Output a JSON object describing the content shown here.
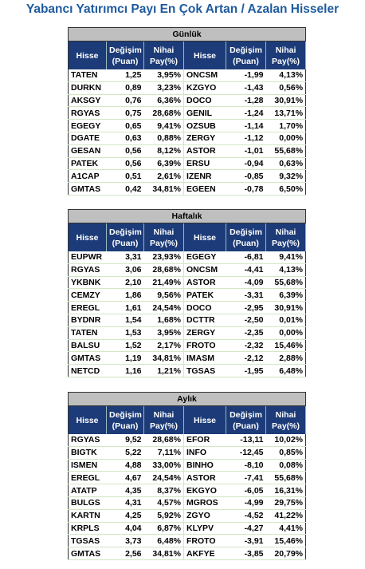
{
  "title": "Yabancı Yatırımcı Payı En Çok Artan / Azalan Hisseler",
  "tables": [
    {
      "name": "Günlük",
      "columns": [
        [
          "Hisse"
        ],
        [
          "Değişim",
          "(Puan)"
        ],
        [
          "Nihai",
          "Pay(%)"
        ],
        [
          "Hisse"
        ],
        [
          "Değişim",
          "(Puan)"
        ],
        [
          "Nihai",
          "Pay(%)"
        ]
      ],
      "rows": [
        [
          "TATEN",
          "1,25",
          "3,95%",
          "ONCSM",
          "-1,99",
          "4,13%"
        ],
        [
          "DURKN",
          "0,89",
          "3,23%",
          "KZGYO",
          "-1,43",
          "0,56%"
        ],
        [
          "AKSGY",
          "0,76",
          "6,36%",
          "DOCO",
          "-1,28",
          "30,91%"
        ],
        [
          "RGYAS",
          "0,75",
          "28,68%",
          "GENIL",
          "-1,24",
          "13,71%"
        ],
        [
          "EGEGY",
          "0,65",
          "9,41%",
          "OZSUB",
          "-1,14",
          "1,70%"
        ],
        [
          "DGATE",
          "0,63",
          "0,88%",
          "ZERGY",
          "-1,12",
          "0,00%"
        ],
        [
          "GESAN",
          "0,56",
          "8,12%",
          "ASTOR",
          "-1,01",
          "55,68%"
        ],
        [
          "PATEK",
          "0,56",
          "6,39%",
          "ERSU",
          "-0,94",
          "0,63%"
        ],
        [
          "A1CAP",
          "0,51",
          "2,61%",
          "IZENR",
          "-0,85",
          "9,32%"
        ],
        [
          "GMTAS",
          "0,42",
          "34,81%",
          "EGEEN",
          "-0,78",
          "6,50%"
        ]
      ]
    },
    {
      "name": "Haftalık",
      "columns": [
        [
          "Hisse"
        ],
        [
          "Değişim",
          "(Puan)"
        ],
        [
          "Nihai",
          "Pay(%)"
        ],
        [
          "Hisse"
        ],
        [
          "Değişim",
          "(Puan)"
        ],
        [
          "Nihai",
          "Pay(%)"
        ]
      ],
      "rows": [
        [
          "EUPWR",
          "3,31",
          "23,93%",
          "EGEGY",
          "-6,81",
          "9,41%"
        ],
        [
          "RGYAS",
          "3,06",
          "28,68%",
          "ONCSM",
          "-4,41",
          "4,13%"
        ],
        [
          "YKBNK",
          "2,10",
          "21,49%",
          "ASTOR",
          "-4,09",
          "55,68%"
        ],
        [
          "CEMZY",
          "1,86",
          "9,56%",
          "PATEK",
          "-3,31",
          "6,39%"
        ],
        [
          "EREGL",
          "1,61",
          "24,54%",
          "DOCO",
          "-2,95",
          "30,91%"
        ],
        [
          "BYDNR",
          "1,54",
          "1,68%",
          "DCTTR",
          "-2,50",
          "0,01%"
        ],
        [
          "TATEN",
          "1,53",
          "3,95%",
          "ZERGY",
          "-2,35",
          "0,00%"
        ],
        [
          "BALSU",
          "1,52",
          "2,17%",
          "FROTO",
          "-2,32",
          "15,46%"
        ],
        [
          "GMTAS",
          "1,19",
          "34,81%",
          "IMASM",
          "-2,12",
          "2,88%"
        ],
        [
          "NETCD",
          "1,16",
          "1,21%",
          "TGSAS",
          "-1,95",
          "6,48%"
        ]
      ]
    },
    {
      "name": "Aylık",
      "columns": [
        [
          "Hisse"
        ],
        [
          "Değişim",
          "(Puan)"
        ],
        [
          "Nihai",
          "Pay(%)"
        ],
        [
          "Hisse"
        ],
        [
          "Değişim",
          "(Puan)"
        ],
        [
          "Nihai",
          "Pay(%)"
        ]
      ],
      "rows": [
        [
          "RGYAS",
          "9,52",
          "28,68%",
          "EFOR",
          "-13,11",
          "10,02%"
        ],
        [
          "BIGTK",
          "5,22",
          "7,11%",
          "INFO",
          "-12,45",
          "0,85%"
        ],
        [
          "ISMEN",
          "4,88",
          "33,00%",
          "BINHO",
          "-8,10",
          "0,08%"
        ],
        [
          "EREGL",
          "4,67",
          "24,54%",
          "ASTOR",
          "-7,41",
          "55,68%"
        ],
        [
          "ATATP",
          "4,35",
          "8,37%",
          "EKGYO",
          "-6,05",
          "16,31%"
        ],
        [
          "BULGS",
          "4,31",
          "4,57%",
          "MGROS",
          "-4,99",
          "29,75%"
        ],
        [
          "KARTN",
          "4,25",
          "5,92%",
          "ZGYO",
          "-4,52",
          "41,22%"
        ],
        [
          "KRPLS",
          "4,04",
          "6,87%",
          "KLYPV",
          "-4,27",
          "4,41%"
        ],
        [
          "TGSAS",
          "3,73",
          "6,48%",
          "FROTO",
          "-3,91",
          "15,46%"
        ],
        [
          "GMTAS",
          "2,56",
          "34,81%",
          "AKFYE",
          "-3,85",
          "20,79%"
        ]
      ]
    }
  ]
}
